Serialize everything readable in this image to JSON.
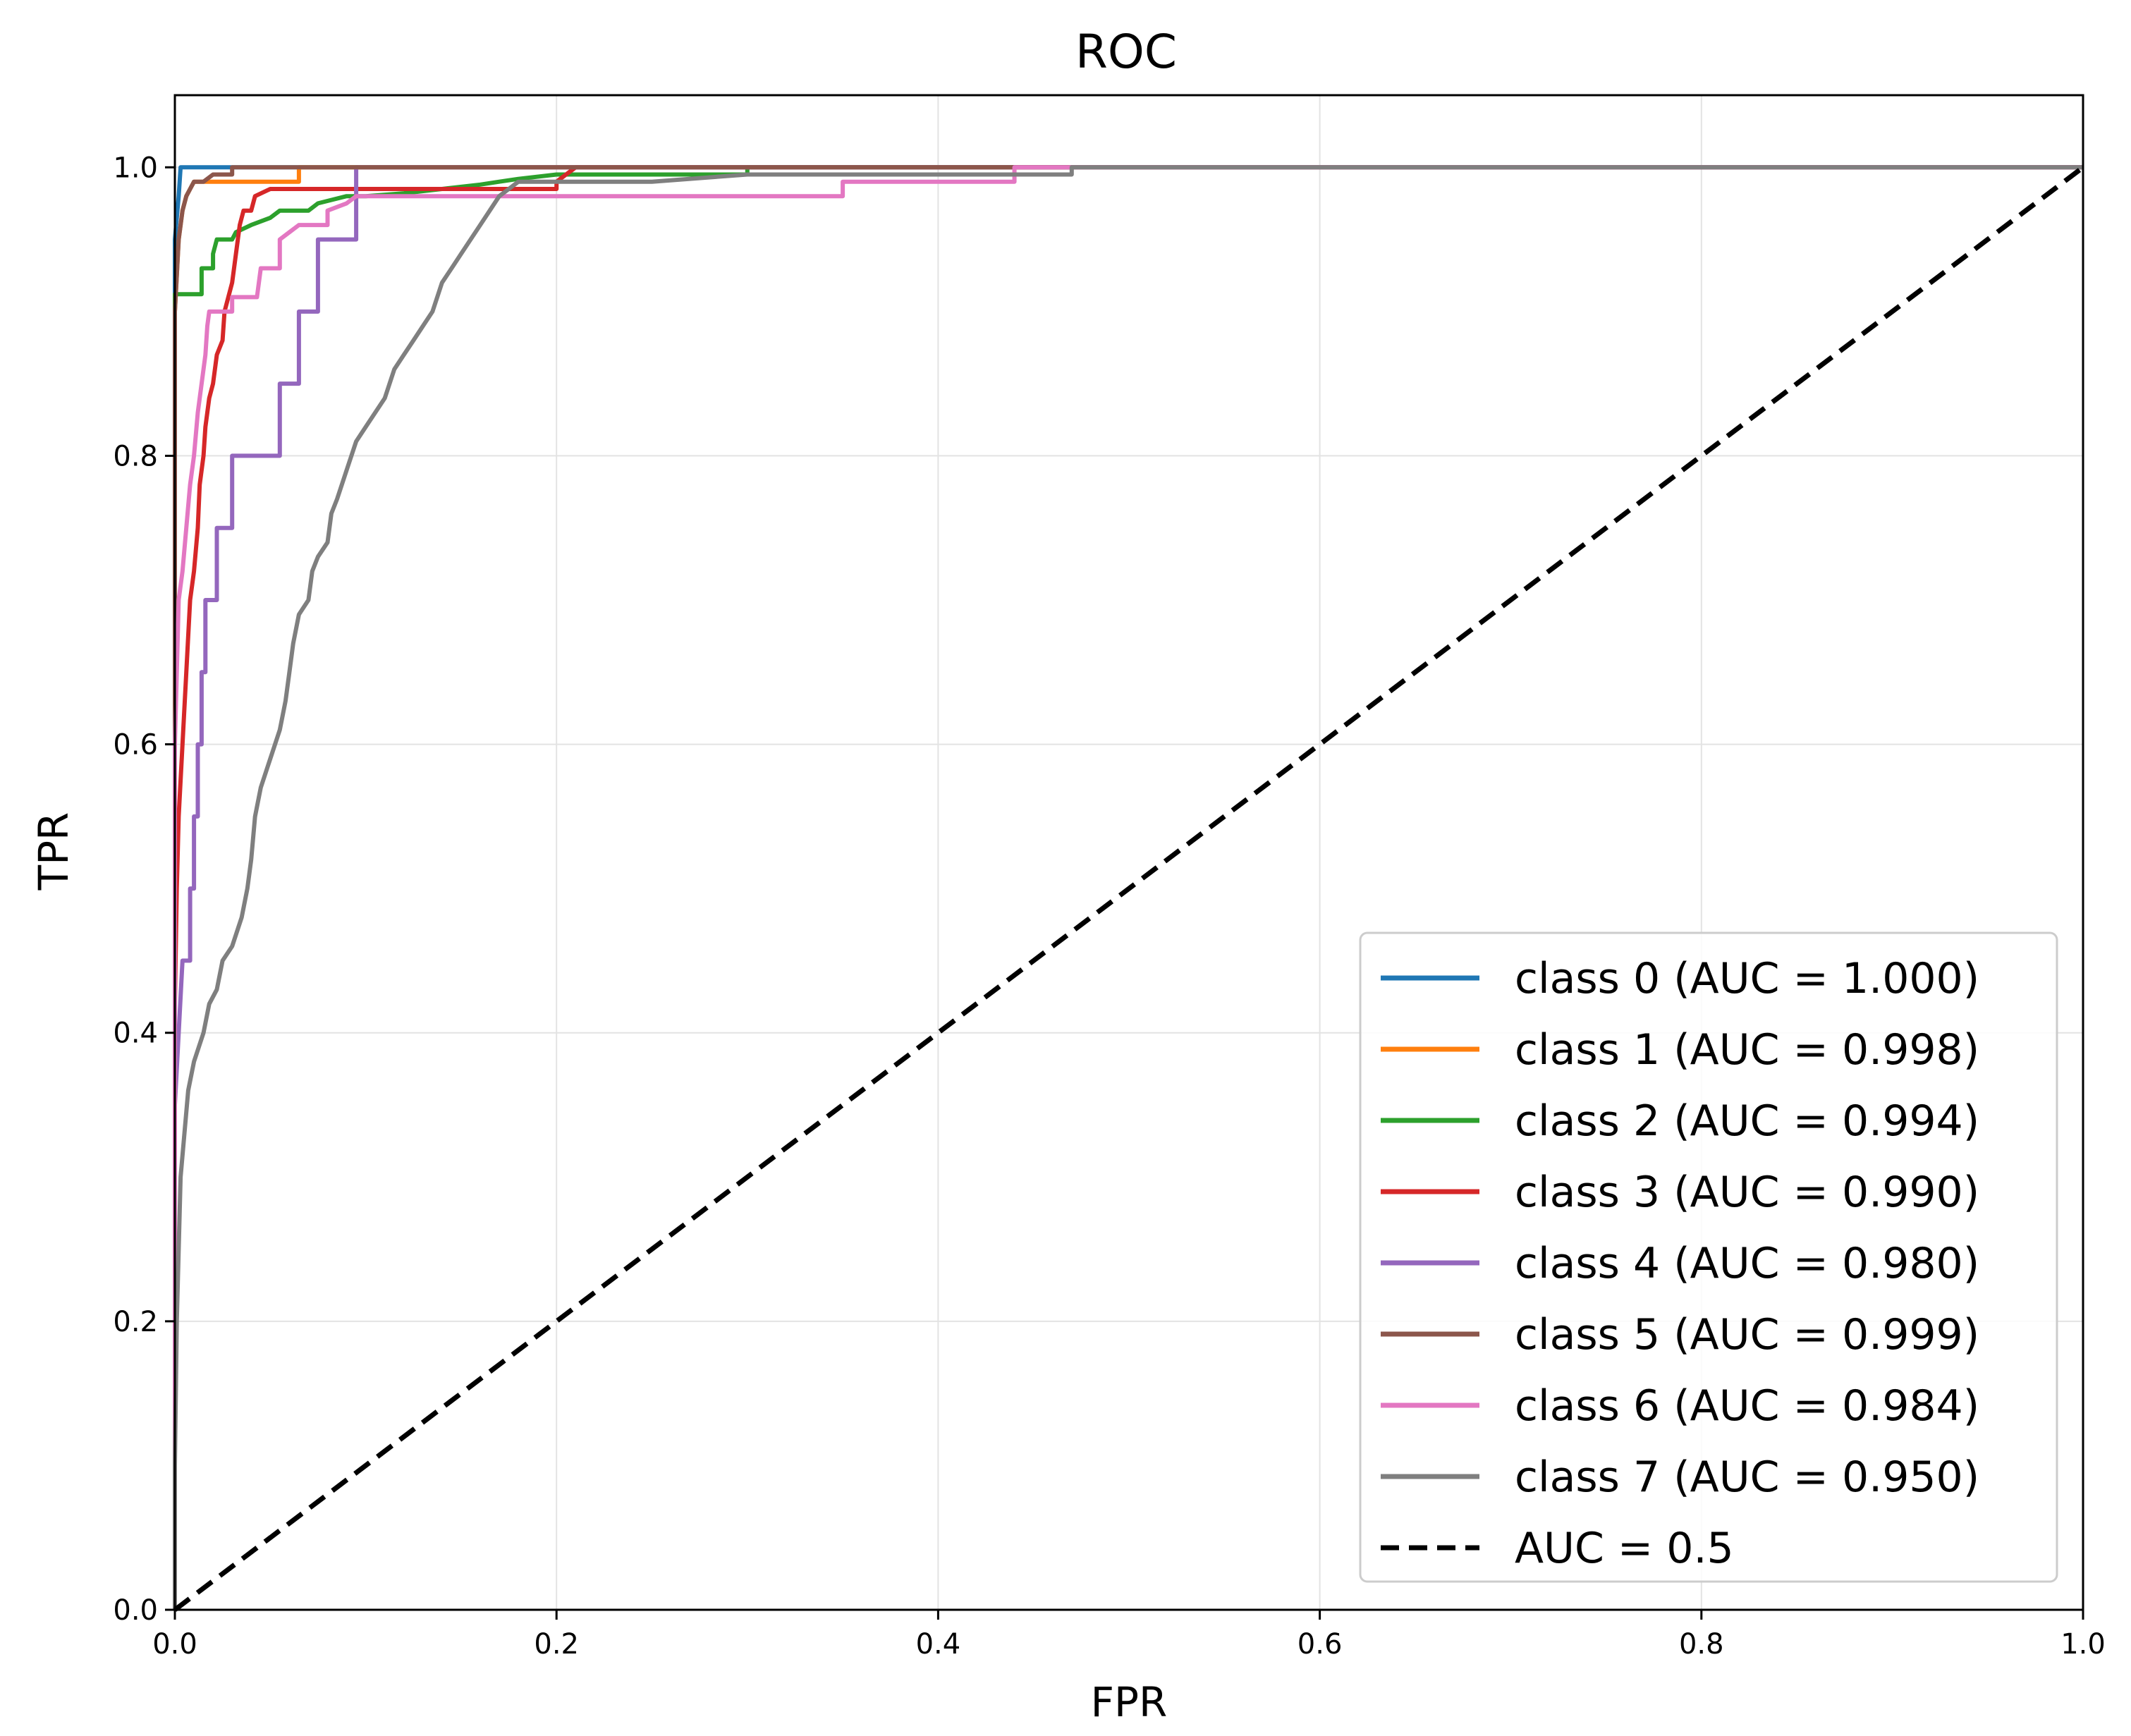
{
  "chart_data": {
    "type": "line",
    "title": "ROC",
    "xlabel": "FPR",
    "ylabel": "TPR",
    "xlim": [
      0.0,
      1.0
    ],
    "ylim": [
      0.0,
      1.05
    ],
    "xticks": [
      0.0,
      0.2,
      0.4,
      0.6,
      0.8,
      1.0
    ],
    "yticks": [
      0.0,
      0.2,
      0.4,
      0.6,
      0.8,
      1.0
    ],
    "xtick_labels": [
      "0.0",
      "0.2",
      "0.4",
      "0.6",
      "0.8",
      "1.0"
    ],
    "ytick_labels": [
      "0.0",
      "0.2",
      "0.4",
      "0.6",
      "0.8",
      "1.0"
    ],
    "grid": true,
    "legend_position": "bottom-right",
    "series": [
      {
        "name": "class 0 (AUC = 1.000)",
        "color": "#1f77b4",
        "points": [
          [
            0,
            0
          ],
          [
            0,
            0.95
          ],
          [
            0.002,
            0.98
          ],
          [
            0.003,
            1.0
          ],
          [
            0.06,
            1.0
          ],
          [
            0.1,
            1.0
          ],
          [
            1.0,
            1.0
          ]
        ]
      },
      {
        "name": "class 1 (AUC = 0.998)",
        "color": "#ff7f0e",
        "points": [
          [
            0,
            0
          ],
          [
            0,
            0.9
          ],
          [
            0.002,
            0.95
          ],
          [
            0.004,
            0.97
          ],
          [
            0.006,
            0.98
          ],
          [
            0.008,
            0.985
          ],
          [
            0.01,
            0.99
          ],
          [
            0.02,
            0.99
          ],
          [
            0.03,
            0.99
          ],
          [
            0.05,
            0.99
          ],
          [
            0.065,
            0.99
          ],
          [
            0.065,
            1.0
          ],
          [
            0.1,
            1.0
          ],
          [
            1.0,
            1.0
          ]
        ]
      },
      {
        "name": "class 2 (AUC = 0.994)",
        "color": "#2ca02c",
        "points": [
          [
            0,
            0
          ],
          [
            0,
            0.912
          ],
          [
            0.014,
            0.912
          ],
          [
            0.014,
            0.93
          ],
          [
            0.02,
            0.93
          ],
          [
            0.02,
            0.94
          ],
          [
            0.022,
            0.95
          ],
          [
            0.03,
            0.95
          ],
          [
            0.032,
            0.955
          ],
          [
            0.04,
            0.96
          ],
          [
            0.05,
            0.965
          ],
          [
            0.055,
            0.97
          ],
          [
            0.07,
            0.97
          ],
          [
            0.075,
            0.975
          ],
          [
            0.09,
            0.98
          ],
          [
            0.1,
            0.98
          ],
          [
            0.12,
            0.982
          ],
          [
            0.14,
            0.985
          ],
          [
            0.16,
            0.988
          ],
          [
            0.17,
            0.99
          ],
          [
            0.18,
            0.992
          ],
          [
            0.2,
            0.995
          ],
          [
            0.3,
            0.995
          ],
          [
            0.3,
            1.0
          ],
          [
            1.0,
            1.0
          ]
        ]
      },
      {
        "name": "class 3 (AUC = 0.990)",
        "color": "#d62728",
        "points": [
          [
            0,
            0
          ],
          [
            0,
            0.42
          ],
          [
            0.001,
            0.5
          ],
          [
            0.002,
            0.55
          ],
          [
            0.004,
            0.6
          ],
          [
            0.006,
            0.65
          ],
          [
            0.008,
            0.7
          ],
          [
            0.01,
            0.72
          ],
          [
            0.012,
            0.75
          ],
          [
            0.013,
            0.78
          ],
          [
            0.015,
            0.8
          ],
          [
            0.016,
            0.82
          ],
          [
            0.018,
            0.84
          ],
          [
            0.02,
            0.85
          ],
          [
            0.022,
            0.87
          ],
          [
            0.025,
            0.88
          ],
          [
            0.026,
            0.9
          ],
          [
            0.028,
            0.91
          ],
          [
            0.03,
            0.92
          ],
          [
            0.031,
            0.93
          ],
          [
            0.032,
            0.94
          ],
          [
            0.033,
            0.95
          ],
          [
            0.034,
            0.96
          ],
          [
            0.035,
            0.965
          ],
          [
            0.036,
            0.97
          ],
          [
            0.04,
            0.97
          ],
          [
            0.042,
            0.98
          ],
          [
            0.05,
            0.985
          ],
          [
            0.1,
            0.985
          ],
          [
            0.2,
            0.985
          ],
          [
            0.2,
            0.99
          ],
          [
            0.21,
            1.0
          ],
          [
            1.0,
            1.0
          ]
        ]
      },
      {
        "name": "class 4 (AUC = 0.980)",
        "color": "#9467bd",
        "points": [
          [
            0,
            0
          ],
          [
            0,
            0.35
          ],
          [
            0.004,
            0.45
          ],
          [
            0.008,
            0.45
          ],
          [
            0.008,
            0.5
          ],
          [
            0.01,
            0.5
          ],
          [
            0.01,
            0.55
          ],
          [
            0.012,
            0.55
          ],
          [
            0.012,
            0.6
          ],
          [
            0.014,
            0.6
          ],
          [
            0.014,
            0.65
          ],
          [
            0.016,
            0.65
          ],
          [
            0.016,
            0.7
          ],
          [
            0.022,
            0.7
          ],
          [
            0.022,
            0.75
          ],
          [
            0.03,
            0.75
          ],
          [
            0.03,
            0.8
          ],
          [
            0.055,
            0.8
          ],
          [
            0.055,
            0.85
          ],
          [
            0.065,
            0.85
          ],
          [
            0.065,
            0.9
          ],
          [
            0.075,
            0.9
          ],
          [
            0.075,
            0.95
          ],
          [
            0.095,
            0.95
          ],
          [
            0.095,
            1.0
          ],
          [
            1.0,
            1.0
          ]
        ]
      },
      {
        "name": "class 5 (AUC = 0.999)",
        "color": "#8c564b",
        "points": [
          [
            0,
            0
          ],
          [
            0,
            0.9
          ],
          [
            0.002,
            0.95
          ],
          [
            0.004,
            0.97
          ],
          [
            0.006,
            0.98
          ],
          [
            0.008,
            0.985
          ],
          [
            0.01,
            0.99
          ],
          [
            0.015,
            0.99
          ],
          [
            0.02,
            0.995
          ],
          [
            0.03,
            0.995
          ],
          [
            0.03,
            1.0
          ],
          [
            1.0,
            1.0
          ]
        ]
      },
      {
        "name": "class 6 (AUC = 0.984)",
        "color": "#e377c2",
        "points": [
          [
            0,
            0
          ],
          [
            0,
            0.6
          ],
          [
            0.002,
            0.7
          ],
          [
            0.004,
            0.72
          ],
          [
            0.006,
            0.75
          ],
          [
            0.008,
            0.78
          ],
          [
            0.01,
            0.8
          ],
          [
            0.012,
            0.83
          ],
          [
            0.014,
            0.85
          ],
          [
            0.016,
            0.87
          ],
          [
            0.017,
            0.89
          ],
          [
            0.018,
            0.9
          ],
          [
            0.03,
            0.9
          ],
          [
            0.03,
            0.91
          ],
          [
            0.043,
            0.91
          ],
          [
            0.045,
            0.93
          ],
          [
            0.055,
            0.93
          ],
          [
            0.055,
            0.95
          ],
          [
            0.06,
            0.955
          ],
          [
            0.065,
            0.96
          ],
          [
            0.08,
            0.96
          ],
          [
            0.08,
            0.97
          ],
          [
            0.09,
            0.975
          ],
          [
            0.095,
            0.98
          ],
          [
            0.35,
            0.98
          ],
          [
            0.35,
            0.99
          ],
          [
            0.44,
            0.99
          ],
          [
            0.44,
            1.0
          ],
          [
            1.0,
            1.0
          ]
        ]
      },
      {
        "name": "class 7 (AUC = 0.950)",
        "color": "#7f7f7f",
        "points": [
          [
            0,
            0
          ],
          [
            0,
            0.1
          ],
          [
            0.001,
            0.2
          ],
          [
            0.002,
            0.25
          ],
          [
            0.003,
            0.3
          ],
          [
            0.005,
            0.33
          ],
          [
            0.007,
            0.36
          ],
          [
            0.01,
            0.38
          ],
          [
            0.015,
            0.4
          ],
          [
            0.018,
            0.42
          ],
          [
            0.022,
            0.43
          ],
          [
            0.025,
            0.45
          ],
          [
            0.03,
            0.46
          ],
          [
            0.035,
            0.48
          ],
          [
            0.038,
            0.5
          ],
          [
            0.04,
            0.52
          ],
          [
            0.042,
            0.55
          ],
          [
            0.045,
            0.57
          ],
          [
            0.05,
            0.59
          ],
          [
            0.055,
            0.61
          ],
          [
            0.058,
            0.63
          ],
          [
            0.06,
            0.65
          ],
          [
            0.062,
            0.67
          ],
          [
            0.065,
            0.69
          ],
          [
            0.07,
            0.7
          ],
          [
            0.072,
            0.72
          ],
          [
            0.075,
            0.73
          ],
          [
            0.08,
            0.74
          ],
          [
            0.082,
            0.76
          ],
          [
            0.085,
            0.77
          ],
          [
            0.09,
            0.79
          ],
          [
            0.095,
            0.81
          ],
          [
            0.1,
            0.82
          ],
          [
            0.105,
            0.83
          ],
          [
            0.11,
            0.84
          ],
          [
            0.115,
            0.86
          ],
          [
            0.12,
            0.87
          ],
          [
            0.125,
            0.88
          ],
          [
            0.13,
            0.89
          ],
          [
            0.135,
            0.9
          ],
          [
            0.14,
            0.92
          ],
          [
            0.145,
            0.93
          ],
          [
            0.15,
            0.94
          ],
          [
            0.155,
            0.95
          ],
          [
            0.16,
            0.96
          ],
          [
            0.165,
            0.97
          ],
          [
            0.17,
            0.98
          ],
          [
            0.175,
            0.985
          ],
          [
            0.18,
            0.99
          ],
          [
            0.25,
            0.99
          ],
          [
            0.3,
            0.995
          ],
          [
            0.47,
            0.995
          ],
          [
            0.47,
            1.0
          ],
          [
            0.67,
            1.0
          ],
          [
            1.0,
            1.0
          ]
        ]
      },
      {
        "name": "AUC = 0.5",
        "color": "#000000",
        "dashed": true,
        "points": [
          [
            0,
            0
          ],
          [
            1,
            1
          ]
        ]
      }
    ]
  }
}
